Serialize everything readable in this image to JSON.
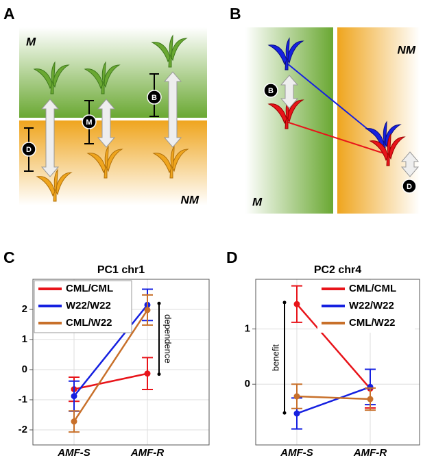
{
  "panel_a": {
    "label": "A",
    "zone_top": "M",
    "zone_bottom": "NM",
    "markers": [
      "D",
      "M",
      "B"
    ]
  },
  "panel_b": {
    "label": "B",
    "zone_left": "M",
    "zone_right": "NM",
    "markers": [
      "B",
      "D"
    ]
  },
  "chart_data": [
    {
      "type": "line",
      "label": "C",
      "title": "PC1 chr1",
      "categories": [
        "AMF-S",
        "AMF-R"
      ],
      "series": [
        {
          "name": "CML/CML",
          "color": "#e8141a",
          "values": [
            -0.65,
            -0.13
          ],
          "errors": [
            0.4,
            0.53
          ]
        },
        {
          "name": "W22/W22",
          "color": "#1520e0",
          "values": [
            -0.88,
            2.15
          ],
          "errors": [
            0.5,
            0.52
          ]
        },
        {
          "name": "CML/W22",
          "color": "#c8702a",
          "values": [
            -1.72,
            1.98
          ],
          "errors": [
            0.35,
            0.5
          ]
        }
      ],
      "ylim": [
        -2.5,
        3
      ],
      "yticks": [
        -2,
        -1,
        0,
        1,
        2
      ],
      "grid": true,
      "legend": "upper left",
      "annotation": {
        "text": "dependence",
        "from": 2.2,
        "to": -0.15
      }
    },
    {
      "type": "line",
      "label": "D",
      "title": "PC2 chr4",
      "categories": [
        "AMF-S",
        "AMF-R"
      ],
      "series": [
        {
          "name": "CML/CML",
          "color": "#e8141a",
          "values": [
            1.45,
            -0.08
          ],
          "errors": [
            0.33,
            0.35
          ]
        },
        {
          "name": "W22/W22",
          "color": "#1520e0",
          "values": [
            -0.53,
            -0.05
          ],
          "errors": [
            0.28,
            0.32
          ]
        },
        {
          "name": "CML/W22",
          "color": "#c8702a",
          "values": [
            -0.22,
            -0.27
          ],
          "errors": [
            0.22,
            0.2
          ]
        }
      ],
      "ylim": [
        -1.1,
        1.9
      ],
      "yticks": [
        0,
        1
      ],
      "grid": true,
      "legend": "upper right",
      "annotation": {
        "text": "benefit",
        "from": 1.48,
        "to": -0.52
      }
    }
  ]
}
